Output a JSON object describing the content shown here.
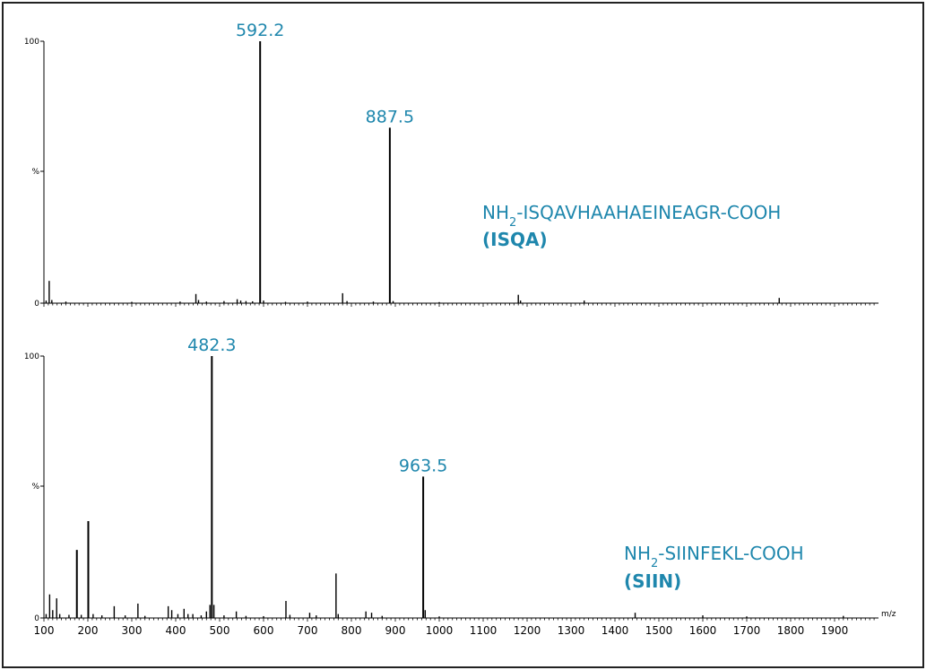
{
  "colors": {
    "accent": "#1f87ad",
    "axis": "#000000",
    "border": "#222222"
  },
  "chart_data": [
    {
      "type": "line",
      "subtype": "mass-spectrum",
      "xlim": [
        100,
        2000
      ],
      "ylim": [
        0,
        100
      ],
      "y_ticks": [
        "100",
        "%",
        "0"
      ],
      "x_ticks": [],
      "x_unit": "",
      "sequence_prefix": "NH",
      "sequence_sub": "2",
      "sequence_rest": "-ISQAVHAAHAEINEAGR-COOH",
      "short_name": "(ISQA)",
      "annotations": [
        {
          "x": 592.2,
          "y": 100,
          "label": "592.2"
        },
        {
          "x": 887.5,
          "y": 67,
          "label": "887.5"
        }
      ],
      "peaks": [
        {
          "x": 105,
          "y": 1
        },
        {
          "x": 112,
          "y": 8.5
        },
        {
          "x": 118,
          "y": 1.2
        },
        {
          "x": 150,
          "y": 0.6
        },
        {
          "x": 300,
          "y": 0.5
        },
        {
          "x": 410,
          "y": 0.6
        },
        {
          "x": 446,
          "y": 3.5
        },
        {
          "x": 452,
          "y": 1.2
        },
        {
          "x": 470,
          "y": 0.6
        },
        {
          "x": 510,
          "y": 0.8
        },
        {
          "x": 540,
          "y": 1.5
        },
        {
          "x": 548,
          "y": 1.0
        },
        {
          "x": 560,
          "y": 0.8
        },
        {
          "x": 575,
          "y": 0.7
        },
        {
          "x": 592.2,
          "y": 100
        },
        {
          "x": 600,
          "y": 1.0
        },
        {
          "x": 650,
          "y": 0.5
        },
        {
          "x": 700,
          "y": 0.6
        },
        {
          "x": 780,
          "y": 3.8
        },
        {
          "x": 790,
          "y": 0.8
        },
        {
          "x": 850,
          "y": 0.6
        },
        {
          "x": 887.5,
          "y": 67
        },
        {
          "x": 895,
          "y": 0.8
        },
        {
          "x": 1000,
          "y": 0.4
        },
        {
          "x": 1180,
          "y": 3.2
        },
        {
          "x": 1185,
          "y": 1.0
        },
        {
          "x": 1330,
          "y": 1.0
        },
        {
          "x": 1774,
          "y": 2.0
        }
      ]
    },
    {
      "type": "line",
      "subtype": "mass-spectrum",
      "xlim": [
        100,
        2000
      ],
      "ylim": [
        0,
        100
      ],
      "y_ticks": [
        "100",
        "%",
        "0"
      ],
      "x_ticks": [
        100,
        200,
        300,
        400,
        500,
        600,
        700,
        800,
        900,
        1000,
        1100,
        1200,
        1300,
        1400,
        1500,
        1600,
        1700,
        1800,
        1900
      ],
      "x_unit": "m/z",
      "sequence_prefix": "NH",
      "sequence_sub": "2",
      "sequence_rest": "-SIINFEKL-COOH",
      "short_name": "(SIIN)",
      "annotations": [
        {
          "x": 482.3,
          "y": 100,
          "label": "482.3"
        },
        {
          "x": 963.5,
          "y": 54,
          "label": "963.5"
        }
      ],
      "peaks": [
        {
          "x": 105,
          "y": 1.5
        },
        {
          "x": 113,
          "y": 9
        },
        {
          "x": 120,
          "y": 3
        },
        {
          "x": 129,
          "y": 7.5
        },
        {
          "x": 136,
          "y": 1.5
        },
        {
          "x": 157,
          "y": 1.2
        },
        {
          "x": 175,
          "y": 26
        },
        {
          "x": 185,
          "y": 1.2
        },
        {
          "x": 201,
          "y": 37
        },
        {
          "x": 212,
          "y": 1.5
        },
        {
          "x": 232,
          "y": 1.0
        },
        {
          "x": 260,
          "y": 4.5
        },
        {
          "x": 285,
          "y": 1.0
        },
        {
          "x": 314,
          "y": 5.5
        },
        {
          "x": 330,
          "y": 0.8
        },
        {
          "x": 383,
          "y": 4.5
        },
        {
          "x": 391,
          "y": 3
        },
        {
          "x": 405,
          "y": 1.5
        },
        {
          "x": 419,
          "y": 3.5
        },
        {
          "x": 428,
          "y": 1.5
        },
        {
          "x": 439,
          "y": 1.5
        },
        {
          "x": 458,
          "y": 1.0
        },
        {
          "x": 470,
          "y": 2.5
        },
        {
          "x": 478,
          "y": 5
        },
        {
          "x": 482.3,
          "y": 100
        },
        {
          "x": 487,
          "y": 5
        },
        {
          "x": 510,
          "y": 1.0
        },
        {
          "x": 538,
          "y": 2.5
        },
        {
          "x": 560,
          "y": 0.8
        },
        {
          "x": 600,
          "y": 0.7
        },
        {
          "x": 651,
          "y": 6.5
        },
        {
          "x": 660,
          "y": 1.2
        },
        {
          "x": 705,
          "y": 2
        },
        {
          "x": 720,
          "y": 1.0
        },
        {
          "x": 765,
          "y": 17
        },
        {
          "x": 770,
          "y": 1.5
        },
        {
          "x": 833,
          "y": 2.5
        },
        {
          "x": 846,
          "y": 2
        },
        {
          "x": 870,
          "y": 0.8
        },
        {
          "x": 963.5,
          "y": 54
        },
        {
          "x": 968,
          "y": 3
        },
        {
          "x": 1000,
          "y": 0.6
        },
        {
          "x": 1446,
          "y": 2
        },
        {
          "x": 1600,
          "y": 1.0
        },
        {
          "x": 1700,
          "y": 0.6
        },
        {
          "x": 1920,
          "y": 0.8
        }
      ]
    }
  ]
}
